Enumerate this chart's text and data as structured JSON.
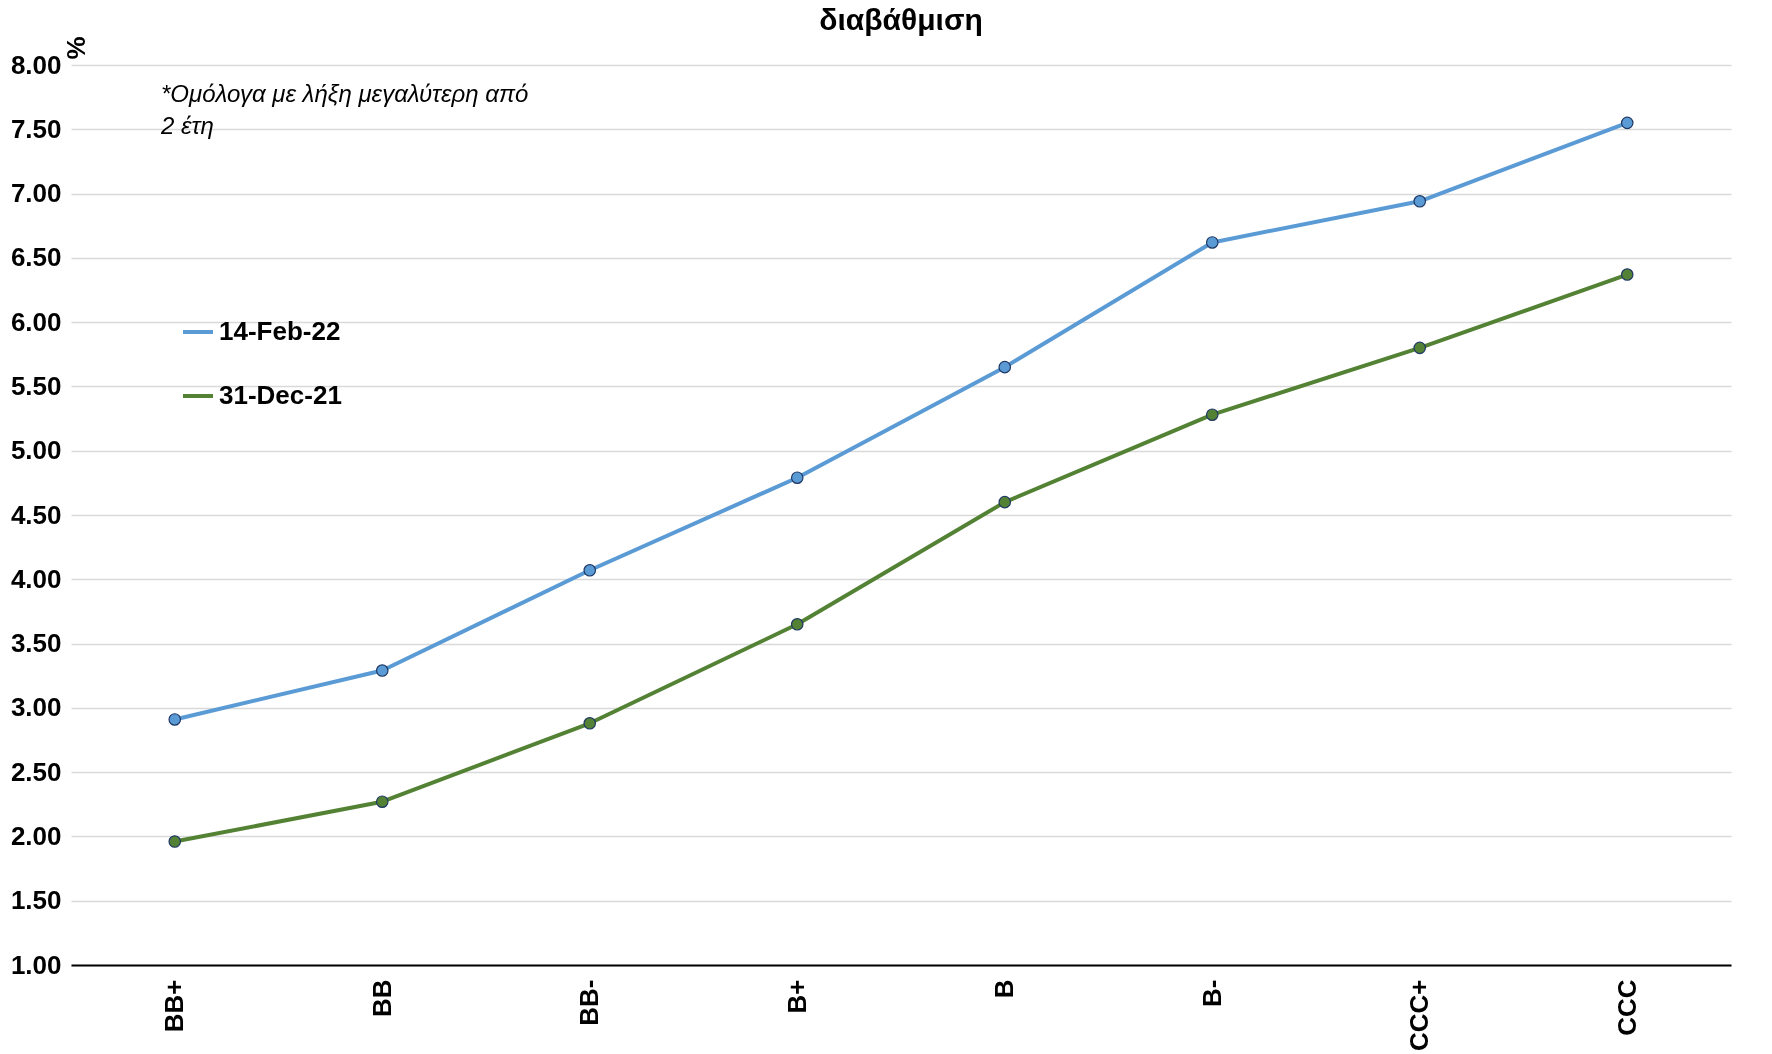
{
  "chart_data": {
    "type": "line",
    "title": "διαβάθμιση",
    "ylabel": "%",
    "categories": [
      "BB+",
      "BB",
      "BB-",
      "B+",
      "B",
      "B-",
      "CCC+",
      "CCC"
    ],
    "series": [
      {
        "name": "14-Feb-22",
        "color": "#5b9bd5",
        "values": [
          2.91,
          3.29,
          4.07,
          4.79,
          5.65,
          6.62,
          6.94,
          7.55
        ]
      },
      {
        "name": "31-Dec-21",
        "color": "#548235",
        "values": [
          1.96,
          2.27,
          2.88,
          3.65,
          4.6,
          5.28,
          5.8,
          6.37
        ]
      }
    ],
    "ylim": [
      1,
      8
    ],
    "yticks": [
      {
        "value": 1,
        "label": "1.00"
      },
      {
        "value": 1.5,
        "label": "1.50"
      },
      {
        "value": 2,
        "label": "2.00"
      },
      {
        "value": 2.5,
        "label": "2.50"
      },
      {
        "value": 3,
        "label": "3.00"
      },
      {
        "value": 3.5,
        "label": "3.50"
      },
      {
        "value": 4,
        "label": "4.00"
      },
      {
        "value": 4.5,
        "label": "4.50"
      },
      {
        "value": 5,
        "label": "5.00"
      },
      {
        "value": 5.5,
        "label": "5.50"
      },
      {
        "value": 6,
        "label": "6.00"
      },
      {
        "value": 6.5,
        "label": "6.50"
      },
      {
        "value": 7,
        "label": "7.00"
      },
      {
        "value": 7.5,
        "label": "7.50"
      },
      {
        "value": 8,
        "label": "8.00"
      }
    ],
    "annotations": [
      "*Ομόλογα με λήξη μεγαλύτερη από\n2 έτη"
    ],
    "grid": "y",
    "legend": "left",
    "marker": "circle",
    "line_style": "solid"
  }
}
